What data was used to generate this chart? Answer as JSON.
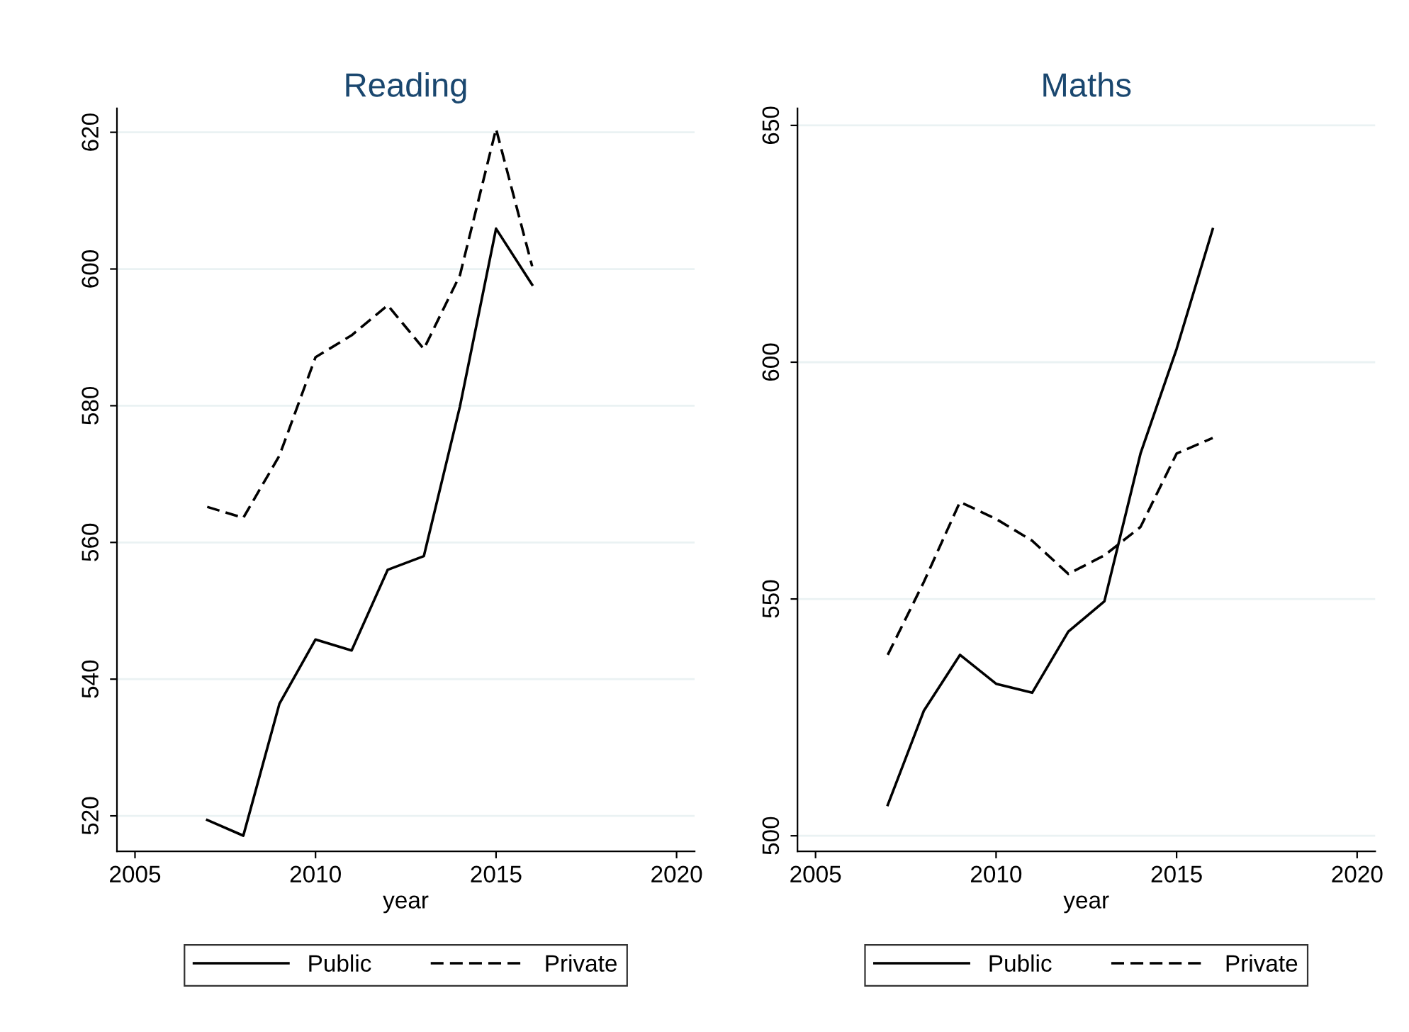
{
  "chart_data": [
    {
      "type": "line",
      "title": "Reading",
      "xlabel": "year",
      "x": [
        2007,
        2008,
        2009,
        2010,
        2011,
        2012,
        2013,
        2014,
        2015,
        2016
      ],
      "series": [
        {
          "name": "Public",
          "color": "#000000",
          "line_style": "solid",
          "values": [
            519.4,
            517.1,
            536.4,
            545.8,
            544.2,
            556.0,
            558.0,
            579.9,
            605.9,
            597.7
          ]
        },
        {
          "name": "Private",
          "color": "#000000",
          "line_style": "dashed",
          "values": [
            565.2,
            563.6,
            572.7,
            587.1,
            590.3,
            594.7,
            588.3,
            599.1,
            620.5,
            600.4
          ]
        }
      ],
      "xlim": [
        2004.5,
        2020.5
      ],
      "xticks": [
        2005,
        2010,
        2015,
        2020
      ],
      "ylim": [
        514.8,
        623.5
      ],
      "yticks": [
        520,
        540,
        560,
        580,
        600,
        620
      ],
      "grid": "y",
      "legend": "bottom",
      "marker": "none"
    },
    {
      "type": "line",
      "title": "Maths",
      "xlabel": "year",
      "x": [
        2007,
        2008,
        2009,
        2010,
        2011,
        2012,
        2013,
        2014,
        2015,
        2016
      ],
      "series": [
        {
          "name": "Public",
          "color": "#000000",
          "line_style": "solid",
          "values": [
            506.5,
            526.4,
            538.2,
            532.1,
            530.2,
            543.1,
            549.5,
            580.7,
            602.8,
            628.1
          ]
        },
        {
          "name": "Private",
          "color": "#000000",
          "line_style": "dashed",
          "values": [
            538.2,
            553.6,
            570.5,
            566.9,
            562.3,
            555.3,
            559.2,
            565.2,
            580.7,
            584.0
          ]
        }
      ],
      "xlim": [
        2004.5,
        2020.5
      ],
      "xticks": [
        2005,
        2010,
        2015,
        2020
      ],
      "ylim": [
        496.7,
        653.6
      ],
      "yticks": [
        500,
        550,
        600,
        650
      ],
      "grid": "y",
      "legend": "bottom",
      "marker": "none"
    }
  ]
}
